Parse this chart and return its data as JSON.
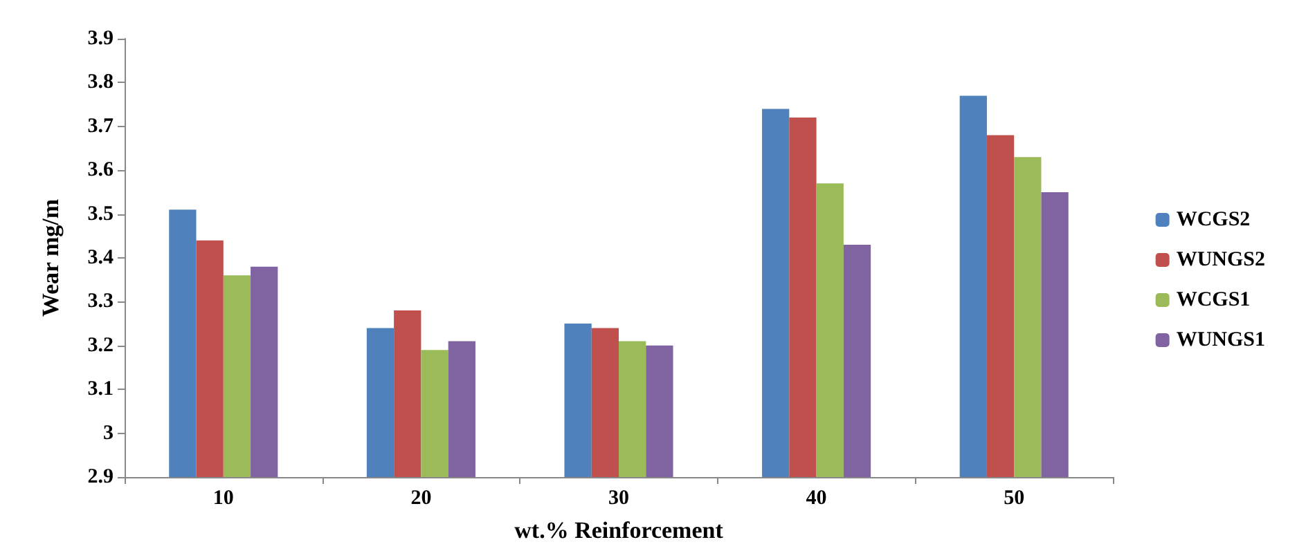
{
  "chart_data": {
    "type": "bar",
    "xlabel": "wt.% Reinforcement",
    "ylabel": "Wear mg/m",
    "categories": [
      "10",
      "20",
      "30",
      "40",
      "50"
    ],
    "series": [
      {
        "name": "WCGS2",
        "color": "#4f81bd",
        "values": [
          3.51,
          3.24,
          3.25,
          3.74,
          3.77
        ]
      },
      {
        "name": "WUNGS2",
        "color": "#c0504d",
        "values": [
          3.44,
          3.28,
          3.24,
          3.72,
          3.68
        ]
      },
      {
        "name": "WCGS1",
        "color": "#9bbb59",
        "values": [
          3.36,
          3.19,
          3.21,
          3.57,
          3.63
        ]
      },
      {
        "name": "WUNGS1",
        "color": "#8064a2",
        "values": [
          3.38,
          3.21,
          3.2,
          3.43,
          3.55
        ]
      }
    ],
    "ylim": [
      2.9,
      3.9
    ],
    "yticks": [
      2.9,
      3,
      3.1,
      3.2,
      3.3,
      3.4,
      3.5,
      3.6,
      3.7,
      3.8,
      3.9
    ],
    "grid": false,
    "legend": "right"
  }
}
